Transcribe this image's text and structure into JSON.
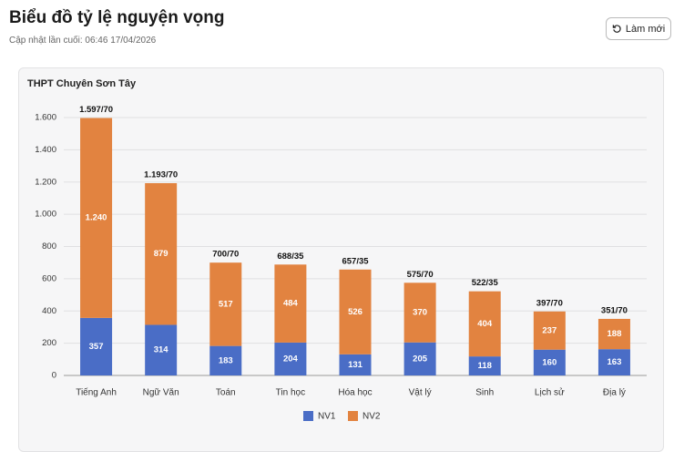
{
  "header": {
    "title": "Biểu đồ tỷ lệ nguyện vọng",
    "subtitle": "Cập nhật lần cuối: 06:46 17/04/2026",
    "button": "Làm mới"
  },
  "chart_data": {
    "type": "stacked_bar",
    "title": "THPT Chuyên Sơn Tây",
    "categories": [
      "Tiếng Anh",
      "Ngữ Văn",
      "Toán",
      "Tin học",
      "Hóa học",
      "Vật lý",
      "Sinh",
      "Lịch sử",
      "Địa lý"
    ],
    "series": [
      {
        "name": "NV1",
        "color": "#4a6dc6",
        "values": [
          357,
          314,
          183,
          204,
          131,
          205,
          118,
          160,
          163
        ],
        "value_labels": [
          "357",
          "314",
          "183",
          "204",
          "131",
          "205",
          "118",
          "160",
          "163"
        ]
      },
      {
        "name": "NV2",
        "color": "#e28340",
        "values": [
          1240,
          879,
          517,
          484,
          526,
          370,
          404,
          237,
          188
        ],
        "value_labels": [
          "1.240",
          "879",
          "517",
          "484",
          "526",
          "370",
          "404",
          "237",
          "188"
        ]
      }
    ],
    "total_labels": [
      "1.597/70",
      "1.193/70",
      "700/70",
      "688/35",
      "657/35",
      "575/70",
      "522/35",
      "397/70",
      "351/70"
    ],
    "ylim": [
      0,
      1600
    ],
    "yticks": [
      0,
      200,
      400,
      600,
      800,
      {
        "value": 1000,
        "label": "1.000"
      },
      {
        "value": 1200,
        "label": "1.200"
      },
      {
        "value": 1400,
        "label": "1.400"
      },
      {
        "value": 1600,
        "label": "1.600"
      }
    ],
    "grid": true,
    "legend": "bottom"
  }
}
